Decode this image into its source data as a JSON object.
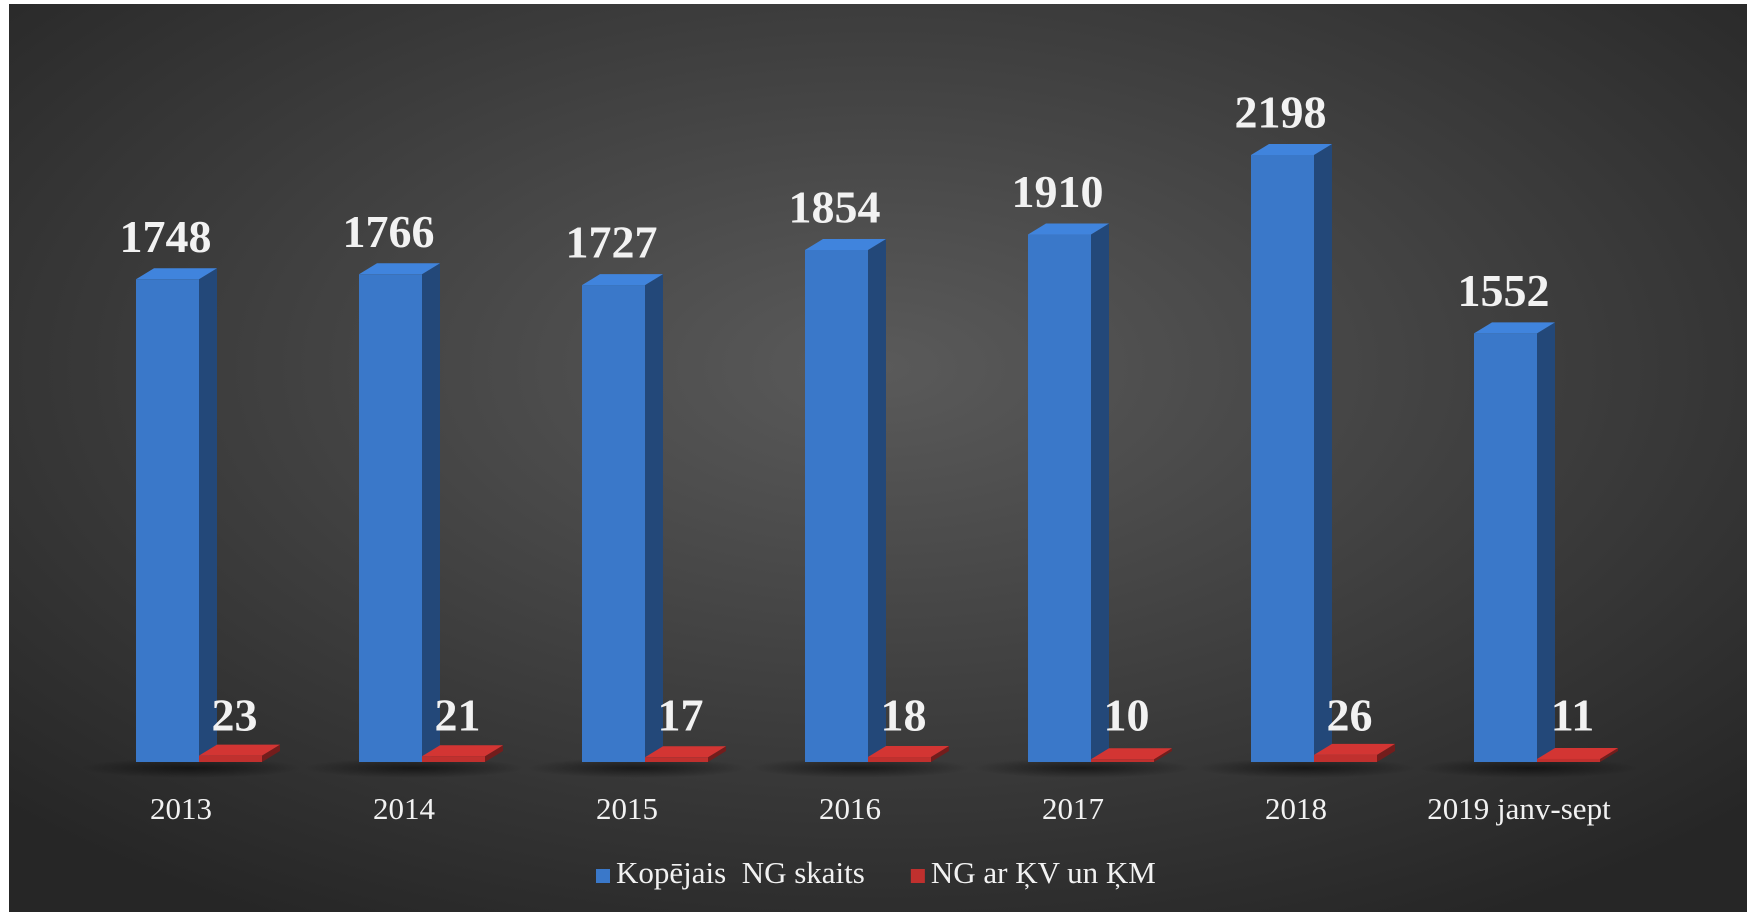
{
  "chart_data": {
    "type": "bar3d",
    "categories": [
      "2013",
      "2014",
      "2015",
      "2016",
      "2017",
      "2018",
      "2019 janv-sept"
    ],
    "series": [
      {
        "name": "Kopējais  NG skaits",
        "color": "#3a78c9",
        "values": [
          1748,
          1766,
          1727,
          1854,
          1910,
          2198,
          1552
        ]
      },
      {
        "name": "NG ar ĶV un ĶM",
        "color": "#c0302e",
        "values": [
          23,
          21,
          17,
          18,
          10,
          26,
          11
        ]
      }
    ],
    "legend": "bottom"
  }
}
